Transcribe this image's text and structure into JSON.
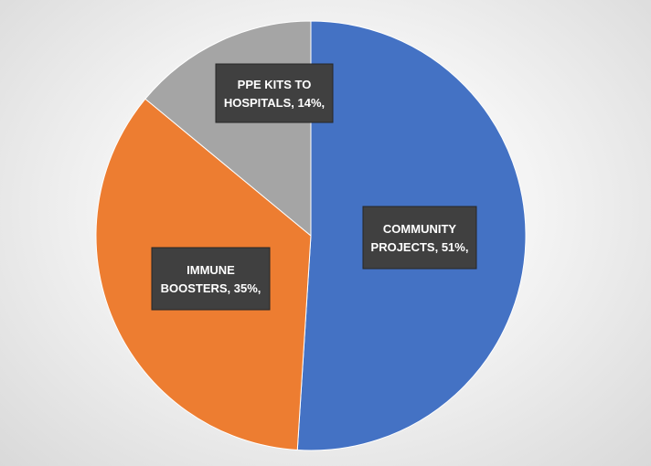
{
  "chart_data": {
    "type": "pie",
    "title": "",
    "categories": [
      "COMMUNITY PROJECTS",
      "IMMUNE BOOSTERS",
      "PPE KITS TO HOSPITALS"
    ],
    "values": [
      51,
      35,
      14
    ],
    "unit": "%",
    "colors": [
      "#4472C4",
      "#ED7D31",
      "#A5A5A5"
    ],
    "data_labels": [
      [
        "COMMUNITY",
        "PROJECTS, 51%,"
      ],
      [
        "IMMUNE",
        "BOOSTERS, 35%,"
      ],
      [
        "PPE KITS TO",
        "HOSPITALS, 14%,"
      ]
    ],
    "legend": "none",
    "label_style": {
      "background": "#404040",
      "text_color": "#ffffff"
    }
  }
}
